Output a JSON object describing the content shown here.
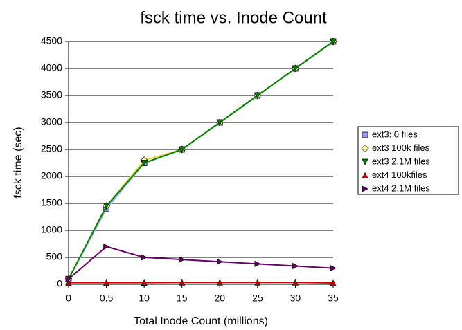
{
  "chart_data": {
    "type": "line",
    "title": "fsck time vs. Inode Count",
    "x_label": "Total Inode Count (millions)",
    "y_label": "fsck time (sec)",
    "categories": [
      "0",
      "0.5",
      "10",
      "15",
      "20",
      "25",
      "30",
      "35"
    ],
    "ylim": [
      0,
      4500
    ],
    "yticks": [
      0,
      500,
      1000,
      1500,
      2000,
      2500,
      3000,
      3500,
      4000,
      4500
    ],
    "grid": true,
    "legend": "right",
    "series": [
      {
        "name": "ext3: 0 files",
        "color": "#9999ff",
        "line_color": "#9999ff",
        "marker": "square",
        "values": [
          100,
          1400,
          2250,
          2500,
          3000,
          3500,
          4000,
          4500
        ]
      },
      {
        "name": "ext3 100k files",
        "color": "#ffff99",
        "line_color": "#e0e040",
        "marker": "diamond",
        "values": [
          100,
          1450,
          2300,
          2500,
          3000,
          3500,
          4000,
          4500
        ]
      },
      {
        "name": "ext3 2.1M files",
        "color": "#008000",
        "line_color": "#008000",
        "marker": "triangle-down",
        "values": [
          100,
          1450,
          2250,
          2500,
          3000,
          3500,
          4000,
          4500
        ]
      },
      {
        "name": "ext4 100kfiles",
        "color": "#cc0000",
        "line_color": "#cc0000",
        "marker": "triangle-up",
        "values": [
          30,
          30,
          30,
          35,
          35,
          35,
          35,
          25
        ]
      },
      {
        "name": "ext4 2.1M files",
        "color": "#660066",
        "line_color": "#660066",
        "marker": "triangle-right",
        "values": [
          100,
          700,
          500,
          460,
          420,
          380,
          340,
          300
        ]
      }
    ]
  }
}
